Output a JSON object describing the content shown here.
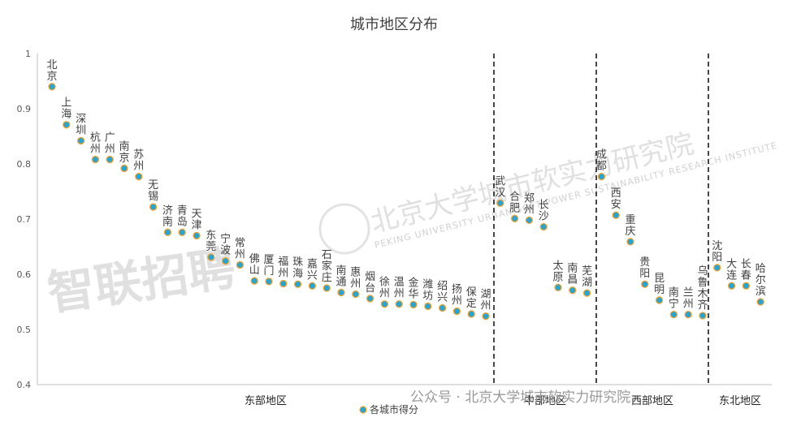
{
  "chart_data": {
    "type": "scatter",
    "title": "城市地区分布",
    "xlabel": "",
    "ylabel": "",
    "ylim": [
      0.4,
      1.0
    ],
    "yticks": [
      "0.4",
      "0.5",
      "0.6",
      "0.7",
      "0.8",
      "0.9",
      "1"
    ],
    "grid": false,
    "legend": {
      "position": "bottom",
      "label": "各城市得分"
    },
    "marker_color": "#2ea3c9",
    "marker_edge_color": "#e8a33d",
    "series": [
      {
        "name": "各城市得分",
        "points": [
          {
            "city": "北京",
            "region": "东部地区",
            "value": 0.94
          },
          {
            "city": "上海",
            "region": "东部地区",
            "value": 0.871
          },
          {
            "city": "深圳",
            "region": "东部地区",
            "value": 0.842
          },
          {
            "city": "杭州",
            "region": "东部地区",
            "value": 0.808
          },
          {
            "city": "广州",
            "region": "东部地区",
            "value": 0.808
          },
          {
            "city": "南京",
            "region": "东部地区",
            "value": 0.792
          },
          {
            "city": "苏州",
            "region": "东部地区",
            "value": 0.777
          },
          {
            "city": "无锡",
            "region": "东部地区",
            "value": 0.722
          },
          {
            "city": "济南",
            "region": "东部地区",
            "value": 0.676
          },
          {
            "city": "青岛",
            "region": "东部地区",
            "value": 0.676
          },
          {
            "city": "天津",
            "region": "东部地区",
            "value": 0.67
          },
          {
            "city": "东莞",
            "region": "东部地区",
            "value": 0.631
          },
          {
            "city": "宁波",
            "region": "东部地区",
            "value": 0.624
          },
          {
            "city": "常州",
            "region": "东部地区",
            "value": 0.617
          },
          {
            "city": "佛山",
            "region": "东部地区",
            "value": 0.588
          },
          {
            "city": "厦门",
            "region": "东部地区",
            "value": 0.587
          },
          {
            "city": "福州",
            "region": "东部地区",
            "value": 0.583
          },
          {
            "city": "珠海",
            "region": "东部地区",
            "value": 0.582
          },
          {
            "city": "嘉兴",
            "region": "东部地区",
            "value": 0.579
          },
          {
            "city": "石家庄",
            "region": "东部地区",
            "value": 0.575
          },
          {
            "city": "南通",
            "region": "东部地区",
            "value": 0.567
          },
          {
            "city": "惠州",
            "region": "东部地区",
            "value": 0.564
          },
          {
            "city": "烟台",
            "region": "东部地区",
            "value": 0.556
          },
          {
            "city": "徐州",
            "region": "东部地区",
            "value": 0.546
          },
          {
            "city": "温州",
            "region": "东部地区",
            "value": 0.546
          },
          {
            "city": "金华",
            "region": "东部地区",
            "value": 0.545
          },
          {
            "city": "潍坊",
            "region": "东部地区",
            "value": 0.542
          },
          {
            "city": "绍兴",
            "region": "东部地区",
            "value": 0.539
          },
          {
            "city": "扬州",
            "region": "东部地区",
            "value": 0.533
          },
          {
            "city": "保定",
            "region": "东部地区",
            "value": 0.528
          },
          {
            "city": "湖州",
            "region": "东部地区",
            "value": 0.524
          },
          {
            "city": "武汉",
            "region": "中部地区",
            "value": 0.729
          },
          {
            "city": "合肥",
            "region": "中部地区",
            "value": 0.701
          },
          {
            "city": "郑州",
            "region": "中部地区",
            "value": 0.698
          },
          {
            "city": "长沙",
            "region": "中部地区",
            "value": 0.686
          },
          {
            "city": "太原",
            "region": "中部地区",
            "value": 0.576
          },
          {
            "city": "南昌",
            "region": "中部地区",
            "value": 0.571
          },
          {
            "city": "芜湖",
            "region": "中部地区",
            "value": 0.566
          },
          {
            "city": "成都",
            "region": "西部地区",
            "value": 0.777
          },
          {
            "city": "西安",
            "region": "西部地区",
            "value": 0.707
          },
          {
            "city": "重庆",
            "region": "西部地区",
            "value": 0.659
          },
          {
            "city": "贵阳",
            "region": "西部地区",
            "value": 0.582
          },
          {
            "city": "昆明",
            "region": "西部地区",
            "value": 0.553
          },
          {
            "city": "南宁",
            "region": "西部地区",
            "value": 0.527
          },
          {
            "city": "兰州",
            "region": "西部地区",
            "value": 0.527
          },
          {
            "city": "乌鲁木齐",
            "region": "西部地区",
            "value": 0.525
          },
          {
            "city": "沈阳",
            "region": "东北地区",
            "value": 0.612
          },
          {
            "city": "大连",
            "region": "东北地区",
            "value": 0.579
          },
          {
            "city": "长春",
            "region": "东北地区",
            "value": 0.579
          },
          {
            "city": "哈尔滨",
            "region": "东北地区",
            "value": 0.55
          }
        ]
      }
    ],
    "regions": [
      {
        "name": "东部地区",
        "count": 31
      },
      {
        "name": "中部地区",
        "count": 7
      },
      {
        "name": "西部地区",
        "count": 8
      },
      {
        "name": "东北地区",
        "count": 4
      }
    ]
  },
  "watermarks": {
    "brand": "智联招聘",
    "institute_cn": "北京大学城市软实力研究院",
    "institute_en": "PEKING UNIVERSITY URBAN SOFT POWER SUSTAINABILITY RESEARCH INSTITUTE",
    "footer": "公众号 · 北京大学城市软实力研究院"
  }
}
